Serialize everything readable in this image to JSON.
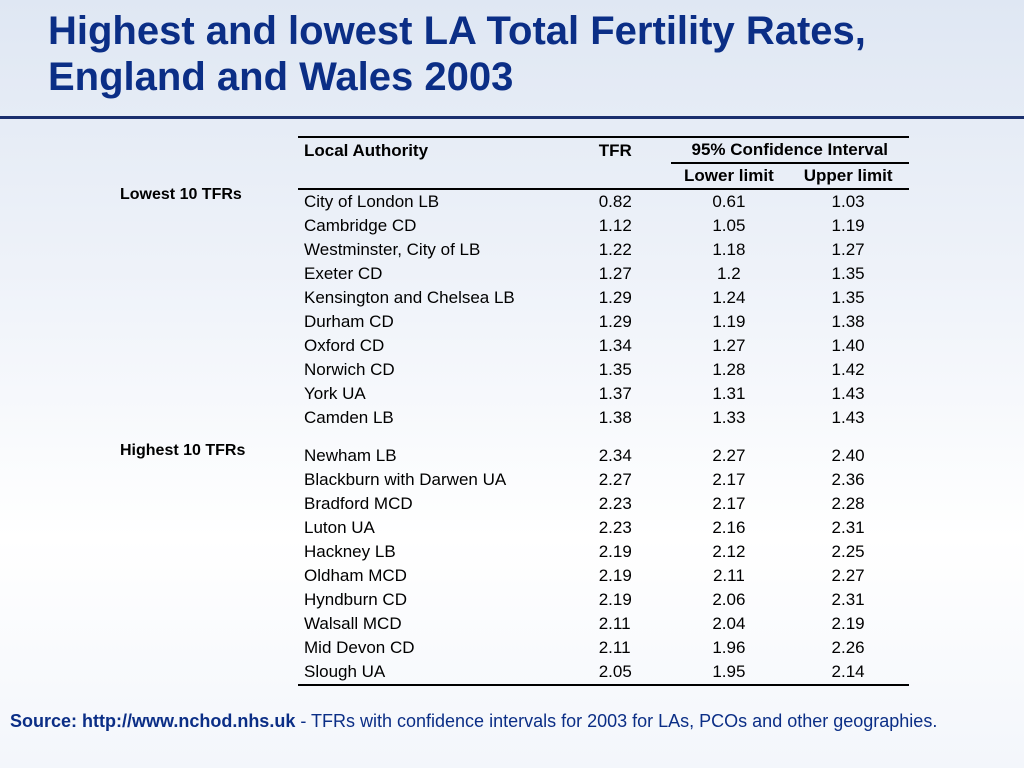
{
  "title": {
    "line1": "Highest and lowest LA Total Fertility Rates,",
    "line2": "England and Wales 2003"
  },
  "table": {
    "headers": {
      "local_authority": "Local Authority",
      "tfr": "TFR",
      "ci_group": "95% Confidence Interval",
      "lower": "Lower limit",
      "upper": "Upper limit"
    },
    "groups": [
      {
        "label": "Lowest 10 TFRs",
        "rows": [
          {
            "la": "City of London LB",
            "tfr": "0.82",
            "lower": "0.61",
            "upper": "1.03"
          },
          {
            "la": "Cambridge CD",
            "tfr": "1.12",
            "lower": "1.05",
            "upper": "1.19"
          },
          {
            "la": "Westminster, City of LB",
            "tfr": "1.22",
            "lower": "1.18",
            "upper": "1.27"
          },
          {
            "la": "Exeter CD",
            "tfr": "1.27",
            "lower": "1.2",
            "upper": "1.35"
          },
          {
            "la": "Kensington and Chelsea LB",
            "tfr": "1.29",
            "lower": "1.24",
            "upper": "1.35"
          },
          {
            "la": "Durham CD",
            "tfr": "1.29",
            "lower": "1.19",
            "upper": "1.38"
          },
          {
            "la": "Oxford CD",
            "tfr": "1.34",
            "lower": "1.27",
            "upper": "1.40"
          },
          {
            "la": "Norwich CD",
            "tfr": "1.35",
            "lower": "1.28",
            "upper": "1.42"
          },
          {
            "la": "York UA",
            "tfr": "1.37",
            "lower": "1.31",
            "upper": "1.43"
          },
          {
            "la": "Camden LB",
            "tfr": "1.38",
            "lower": "1.33",
            "upper": "1.43"
          }
        ]
      },
      {
        "label": "Highest 10 TFRs",
        "rows": [
          {
            "la": "Newham LB",
            "tfr": "2.34",
            "lower": "2.27",
            "upper": "2.40"
          },
          {
            "la": "Blackburn with Darwen UA",
            "tfr": "2.27",
            "lower": "2.17",
            "upper": "2.36"
          },
          {
            "la": "Bradford MCD",
            "tfr": "2.23",
            "lower": "2.17",
            "upper": "2.28"
          },
          {
            "la": "Luton UA",
            "tfr": "2.23",
            "lower": "2.16",
            "upper": "2.31"
          },
          {
            "la": "Hackney LB",
            "tfr": "2.19",
            "lower": "2.12",
            "upper": "2.25"
          },
          {
            "la": "Oldham MCD",
            "tfr": "2.19",
            "lower": "2.11",
            "upper": "2.27"
          },
          {
            "la": "Hyndburn CD",
            "tfr": "2.19",
            "lower": "2.06",
            "upper": "2.31"
          },
          {
            "la": "Walsall MCD",
            "tfr": "2.11",
            "lower": "2.04",
            "upper": "2.19"
          },
          {
            "la": "Mid Devon CD",
            "tfr": "2.11",
            "lower": "1.96",
            "upper": "2.26"
          },
          {
            "la": "Slough UA",
            "tfr": "2.05",
            "lower": "1.95",
            "upper": "2.14"
          }
        ]
      }
    ]
  },
  "source": {
    "label": "Source: http://www.nchod.nhs.uk",
    "text": " - TFRs with confidence intervals for 2003 for LAs, PCOs and other geographies."
  },
  "colors": {
    "title": "#0b2e86",
    "rule": "#1a2f6e"
  }
}
